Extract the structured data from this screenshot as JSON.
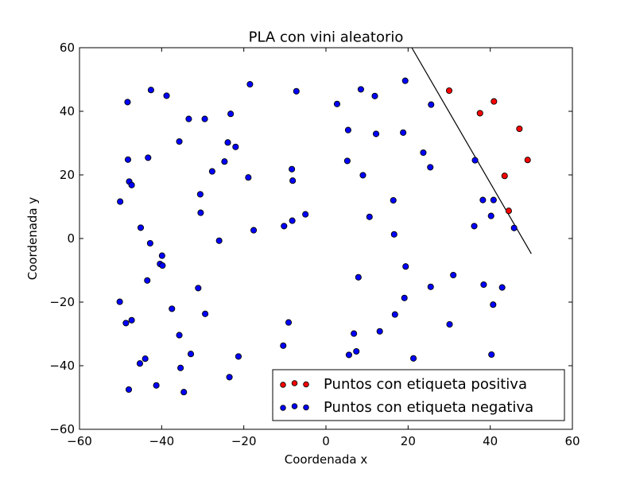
{
  "chart_data": {
    "type": "scatter",
    "title": "PLA con vini aleatorio",
    "xlabel": "Coordenada x",
    "ylabel": "Coordenada y",
    "xlim": [
      -60,
      60
    ],
    "ylim": [
      -60,
      60
    ],
    "xticks": [
      -60,
      -40,
      -20,
      0,
      20,
      40,
      60
    ],
    "yticks": [
      -60,
      -40,
      -20,
      0,
      20,
      40,
      60
    ],
    "xtick_labels": [
      "−60",
      "−40",
      "−20",
      "0",
      "20",
      "40",
      "60"
    ],
    "ytick_labels": [
      "−60",
      "−40",
      "−20",
      "0",
      "20",
      "40",
      "60"
    ],
    "grid": false,
    "legend_position": "bottom-right",
    "series": [
      {
        "name": "Puntos con etiqueta positiva",
        "color": "#ff0000",
        "points": [
          [
            30,
            46.5
          ],
          [
            40.9,
            43.1
          ],
          [
            37.5,
            39.4
          ],
          [
            47.1,
            34.5
          ],
          [
            49.1,
            24.7
          ],
          [
            43.5,
            19.7
          ],
          [
            44.5,
            8.7
          ]
        ]
      },
      {
        "name": "Puntos con etiqueta negativa",
        "color": "#0000ff",
        "points": [
          [
            -48.3,
            42.9
          ],
          [
            -42.6,
            46.7
          ],
          [
            -38.8,
            44.9
          ],
          [
            -33.4,
            37.6
          ],
          [
            -29.5,
            37.6
          ],
          [
            -23.2,
            39.2
          ],
          [
            -18.5,
            48.5
          ],
          [
            -7.2,
            46.3
          ],
          [
            -35.7,
            30.5
          ],
          [
            -23.9,
            30.2
          ],
          [
            -22,
            28.8
          ],
          [
            -48.2,
            24.8
          ],
          [
            -43.3,
            25.4
          ],
          [
            -24.7,
            24.2
          ],
          [
            -27.7,
            21.1
          ],
          [
            -47.9,
            17.9
          ],
          [
            -47.3,
            16.8
          ],
          [
            -18.9,
            19.2
          ],
          [
            -8.3,
            21.8
          ],
          [
            -8.1,
            18.2
          ],
          [
            -50.1,
            11.6
          ],
          [
            -30.6,
            13.9
          ],
          [
            -30.5,
            8.1
          ],
          [
            -5,
            7.6
          ],
          [
            -8.2,
            5.6
          ],
          [
            -10.2,
            3.9
          ],
          [
            -45.1,
            3.4
          ],
          [
            -17.6,
            2.6
          ],
          [
            -26,
            -0.7
          ],
          [
            -42.8,
            -1.5
          ],
          [
            -39.9,
            -5.4
          ],
          [
            -40.4,
            -8
          ],
          [
            -39.8,
            -8.5
          ],
          [
            -43.5,
            -13.2
          ],
          [
            -31.1,
            -15.6
          ],
          [
            -50.2,
            -19.9
          ],
          [
            -37.5,
            -22.1
          ],
          [
            -29.4,
            -23.7
          ],
          [
            -47.3,
            -25.7
          ],
          [
            -48.7,
            -26.6
          ],
          [
            -35.7,
            -30.4
          ],
          [
            -32.9,
            -36.3
          ],
          [
            -44,
            -37.8
          ],
          [
            -45.3,
            -39.3
          ],
          [
            -35.4,
            -40.7
          ],
          [
            -41.3,
            -46.2
          ],
          [
            -48,
            -47.5
          ],
          [
            -34.6,
            -48.3
          ],
          [
            -21.3,
            -37.1
          ],
          [
            -23.5,
            -43.6
          ],
          [
            -9.1,
            -26.4
          ],
          [
            -10.4,
            -33.7
          ],
          [
            2.7,
            42.3
          ],
          [
            8.5,
            46.9
          ],
          [
            11.9,
            44.8
          ],
          [
            19.3,
            49.6
          ],
          [
            25.6,
            42.1
          ],
          [
            5.4,
            34.1
          ],
          [
            12.2,
            32.9
          ],
          [
            18.8,
            33.3
          ],
          [
            23.7,
            27
          ],
          [
            5.2,
            24.4
          ],
          [
            9,
            19.9
          ],
          [
            25.4,
            22.4
          ],
          [
            36.3,
            24.6
          ],
          [
            16.4,
            12
          ],
          [
            38.2,
            12.1
          ],
          [
            40.8,
            12.1
          ],
          [
            10.6,
            6.8
          ],
          [
            40.2,
            7.1
          ],
          [
            36.1,
            3.9
          ],
          [
            45.8,
            3.3
          ],
          [
            16.6,
            1.3
          ],
          [
            19.4,
            -8.8
          ],
          [
            7.9,
            -12.2
          ],
          [
            31,
            -11.5
          ],
          [
            25.5,
            -15.2
          ],
          [
            38.4,
            -14.5
          ],
          [
            42.9,
            -15.4
          ],
          [
            19.1,
            -18.7
          ],
          [
            40.7,
            -20.8
          ],
          [
            16.8,
            -23.9
          ],
          [
            30.1,
            -27
          ],
          [
            13.1,
            -29.2
          ],
          [
            6.8,
            -29.9
          ],
          [
            7.4,
            -35.5
          ],
          [
            5.6,
            -36.6
          ],
          [
            21.3,
            -37.7
          ],
          [
            40.3,
            -36.5
          ]
        ]
      }
    ],
    "lines": [
      {
        "name": "",
        "color": "#000000",
        "x": [
          20.9,
          50
        ],
        "y": [
          60,
          -4.8
        ]
      }
    ]
  }
}
